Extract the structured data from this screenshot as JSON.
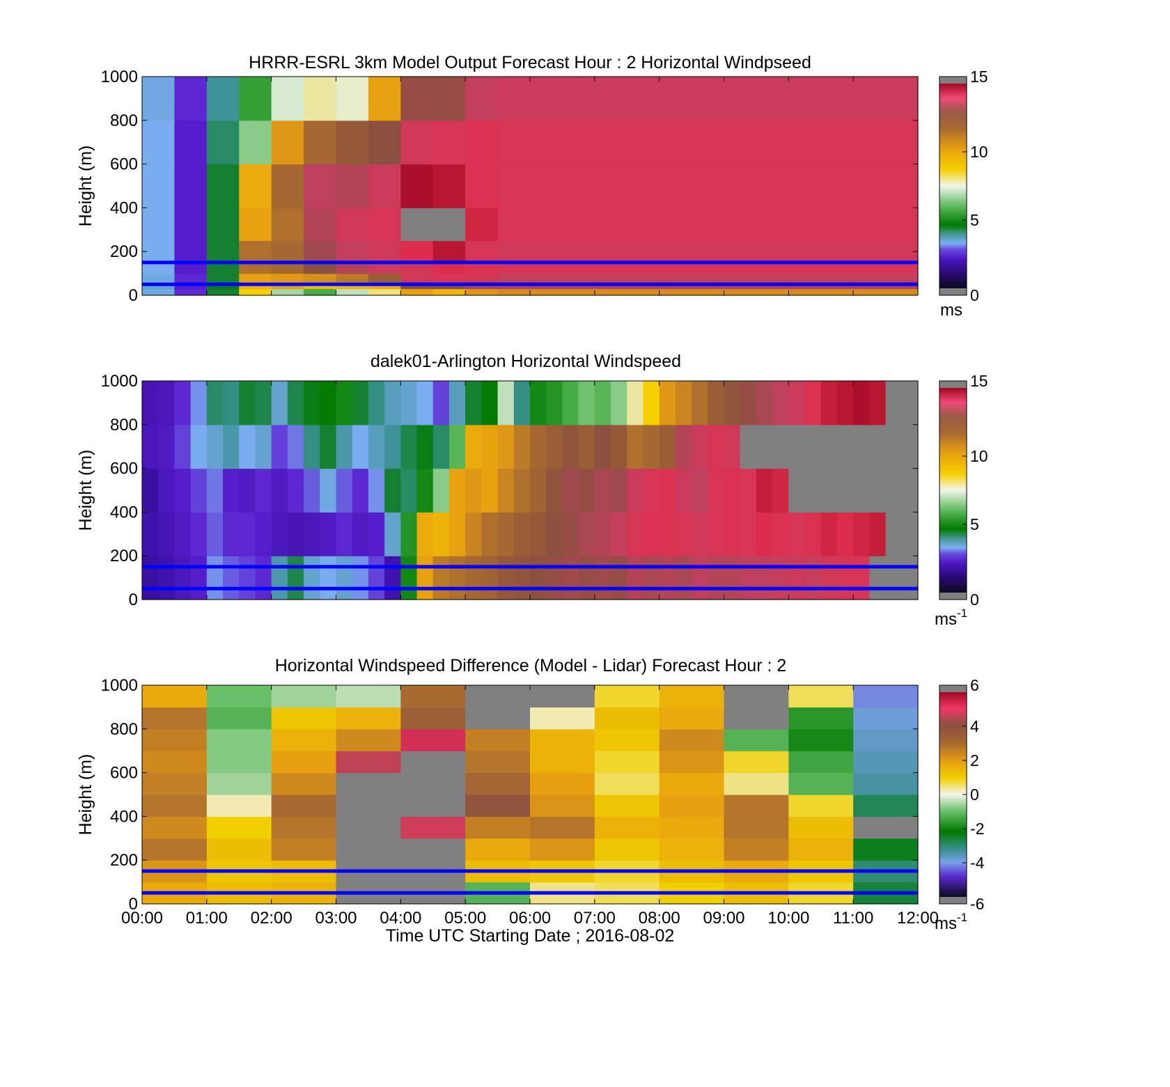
{
  "colors": {
    "background": "#ffffff",
    "reference_lines": "#0000ff",
    "missing_data": "#808080",
    "axis": "#000000",
    "wind_colormap": [
      "#1c0a3a",
      "#3d10a8",
      "#5a20d0",
      "#7aaef0",
      "#3a9090",
      "#007a00",
      "#5ab85a",
      "#e6efe0",
      "#f5d000",
      "#e8a010",
      "#a86a30",
      "#8a5040",
      "#c04060",
      "#e03050",
      "#a00820"
    ],
    "diff_colormap": [
      "#1c0a3a",
      "#5a2ad0",
      "#7aa0e8",
      "#3a9090",
      "#007a00",
      "#6ac06a",
      "#f0f0e0",
      "#f0d000",
      "#e8a010",
      "#a86a30",
      "#8a5040",
      "#e03860",
      "#a00820"
    ]
  },
  "chart_data": [
    {
      "type": "heatmap",
      "title": "HRRR-ESRL 3km Model Output   Forecast Hour : 2 Horizontal Windpseed",
      "xlabel": "",
      "ylabel": "Height (m)",
      "xlim": [
        "00:00",
        "12:00"
      ],
      "xticks": [
        "00:00",
        "01:00",
        "02:00",
        "03:00",
        "04:00",
        "05:00",
        "06:00",
        "07:00",
        "08:00",
        "09:00",
        "10:00",
        "11:00",
        "12:00"
      ],
      "xticklabels_shown": false,
      "ylim": [
        0,
        1000
      ],
      "yticks": [
        "0",
        "200",
        "400",
        "600",
        "800",
        "1000"
      ],
      "colorbar": {
        "min": 0,
        "max": 15,
        "ticks": [
          "0",
          "5",
          "10",
          "15"
        ],
        "unit": "ms"
      },
      "reference_lines_m": [
        150,
        50
      ],
      "time_bins": [
        "00:00",
        "00:30",
        "01:00",
        "01:30",
        "02:00",
        "02:30",
        "03:00",
        "03:30",
        "04:00",
        "04:30",
        "05:00",
        "05:30"
      ],
      "height_levels_m": [
        0,
        30,
        60,
        100,
        150,
        250,
        400,
        600,
        800,
        1000
      ],
      "windspeed_ms": [
        [
          3.4,
          2.2,
          5.0,
          8.6,
          7.0,
          6.2,
          7.2,
          8.0,
          9.6,
          9.2,
          9.8,
          10.0
        ],
        [
          3.6,
          2.0,
          5.2,
          9.2,
          9.6,
          9.0,
          9.2,
          9.4,
          11.8,
          11.8,
          12.4,
          12.6
        ],
        [
          3.4,
          2.2,
          5.0,
          9.6,
          9.8,
          10.0,
          10.4,
          11.2,
          13.4,
          13.6,
          13.4,
          13.0
        ],
        [
          3.2,
          2.0,
          5.0,
          10.6,
          10.8,
          11.8,
          12.6,
          13.2,
          13.4,
          14.0,
          13.8,
          13.6
        ],
        [
          3.2,
          2.0,
          5.0,
          10.6,
          10.8,
          12.2,
          13.0,
          13.4,
          14.0,
          14.6,
          13.6,
          13.4
        ],
        [
          3.2,
          2.0,
          5.0,
          9.6,
          10.6,
          12.6,
          13.4,
          13.6,
          null,
          null,
          14.2,
          13.6
        ],
        [
          3.2,
          2.0,
          5.0,
          9.4,
          10.8,
          12.8,
          12.6,
          13.2,
          14.8,
          14.6,
          13.8,
          13.6
        ],
        [
          3.2,
          2.0,
          4.6,
          6.8,
          9.8,
          10.8,
          11.4,
          11.8,
          13.4,
          13.6,
          13.8,
          13.6
        ],
        [
          3.4,
          2.2,
          4.2,
          6.0,
          7.4,
          7.8,
          7.6,
          9.6,
          12.0,
          12.0,
          13.0,
          13.2
        ]
      ]
    },
    {
      "type": "heatmap",
      "title": "dalek01-Arlington  Horizontal Windspeed",
      "xlabel": "",
      "ylabel": "Height (m)",
      "xlim": [
        "00:00",
        "12:00"
      ],
      "xticks": [
        "00:00",
        "01:00",
        "02:00",
        "03:00",
        "04:00",
        "05:00",
        "06:00",
        "07:00",
        "08:00",
        "09:00",
        "10:00",
        "11:00",
        "12:00"
      ],
      "xticklabels_shown": false,
      "ylim": [
        0,
        1000
      ],
      "yticks": [
        "0",
        "200",
        "400",
        "600",
        "800",
        "1000"
      ],
      "colorbar": {
        "min": 0,
        "max": 15,
        "ticks": [
          "0",
          "5",
          "10",
          "15"
        ],
        "unit": "ms",
        "unit_exponent": "-1"
      },
      "reference_lines_m": [
        150,
        50
      ],
      "time_bins": [
        "00:00",
        "00:15",
        "00:30",
        "00:45",
        "01:00",
        "01:15",
        "01:30",
        "01:45",
        "02:00",
        "02:15",
        "02:30",
        "02:45",
        "03:00",
        "03:15",
        "03:30",
        "03:45",
        "04:00",
        "04:15",
        "04:30",
        "04:45",
        "05:00",
        "05:15",
        "05:30",
        "05:45",
        "06:00",
        "06:15",
        "06:30",
        "06:45",
        "07:00",
        "07:15",
        "07:30",
        "07:45",
        "08:00",
        "08:15",
        "08:30",
        "08:45",
        "09:00",
        "09:15",
        "09:30",
        "09:45",
        "10:00",
        "10:15",
        "10:30",
        "10:45",
        "11:00",
        "11:15",
        "11:30",
        "11:45"
      ],
      "height_bands_m": [
        [
          0,
          200
        ],
        [
          200,
          400
        ],
        [
          400,
          600
        ],
        [
          600,
          800
        ],
        [
          800,
          1000
        ]
      ],
      "windspeed_ms": [
        [
          1.0,
          1.2,
          1.6,
          2.0,
          3.0,
          2.6,
          2.4,
          2.2,
          4.0,
          4.8,
          3.6,
          3.2,
          3.6,
          3.0,
          2.4,
          1.2,
          5.6,
          9.6,
          10.4,
          10.6,
          10.8,
          11.0,
          11.4,
          11.6,
          11.8,
          12.0,
          12.2,
          12.0,
          12.2,
          12.0,
          12.6,
          12.4,
          12.6,
          12.4,
          12.8,
          12.6,
          12.6,
          12.8,
          12.8,
          13.0,
          13.2,
          13.0,
          13.4,
          13.6,
          13.6,
          null,
          null,
          null
        ],
        [
          1.2,
          1.4,
          1.8,
          2.2,
          2.6,
          2.2,
          2.2,
          2.0,
          1.6,
          1.4,
          1.6,
          1.8,
          2.2,
          1.8,
          2.0,
          3.6,
          5.8,
          9.4,
          9.2,
          9.6,
          10.2,
          10.6,
          10.8,
          11.2,
          11.4,
          11.8,
          12.0,
          12.4,
          12.6,
          13.0,
          13.6,
          13.8,
          13.8,
          13.6,
          13.4,
          13.6,
          13.8,
          13.6,
          14.0,
          13.8,
          13.6,
          13.8,
          14.2,
          14.0,
          14.2,
          14.4,
          null,
          null
        ],
        [
          1.0,
          1.6,
          2.0,
          2.4,
          2.8,
          2.0,
          1.8,
          2.2,
          1.8,
          2.2,
          2.6,
          3.4,
          2.6,
          2.2,
          3.0,
          5.0,
          4.6,
          5.6,
          6.8,
          9.6,
          9.8,
          9.6,
          10.2,
          10.6,
          11.0,
          11.6,
          12.2,
          12.0,
          12.4,
          12.2,
          13.2,
          13.6,
          13.8,
          13.2,
          12.8,
          13.6,
          13.8,
          13.6,
          14.4,
          14.2,
          null,
          null,
          null,
          null,
          null,
          null,
          null,
          null
        ],
        [
          1.6,
          1.8,
          2.4,
          3.2,
          3.6,
          4.0,
          3.2,
          3.6,
          2.4,
          2.8,
          4.4,
          5.0,
          4.0,
          3.2,
          3.8,
          4.2,
          4.8,
          5.2,
          4.6,
          6.4,
          9.4,
          9.6,
          9.8,
          10.4,
          10.8,
          11.2,
          11.6,
          11.2,
          11.8,
          11.4,
          10.6,
          10.8,
          11.2,
          12.6,
          13.2,
          13.6,
          13.4,
          null,
          null,
          null,
          null,
          null,
          null,
          null,
          null,
          null,
          null,
          null
        ],
        [
          1.4,
          1.6,
          2.2,
          3.0,
          4.6,
          4.4,
          5.0,
          4.8,
          3.6,
          4.8,
          5.2,
          5.4,
          5.6,
          5.0,
          4.4,
          3.8,
          3.6,
          3.2,
          2.4,
          3.8,
          5.0,
          5.4,
          7.2,
          4.4,
          5.6,
          5.8,
          6.2,
          6.6,
          6.4,
          6.8,
          7.8,
          8.6,
          9.8,
          10.2,
          10.6,
          11.2,
          11.6,
          12.0,
          12.4,
          12.8,
          13.2,
          13.8,
          14.4,
          14.6,
          14.8,
          14.6,
          null,
          null
        ]
      ]
    },
    {
      "type": "heatmap",
      "title": "Horizontal Windspeed Difference (Model - Lidar) Forecast Hour : 2",
      "xlabel": "Time UTC  Starting Date ; 2016-08-02",
      "ylabel": "Height (m)",
      "xlim": [
        "00:00",
        "12:00"
      ],
      "xticks": [
        "00:00",
        "01:00",
        "02:00",
        "03:00",
        "04:00",
        "05:00",
        "06:00",
        "07:00",
        "08:00",
        "09:00",
        "10:00",
        "11:00",
        "12:00"
      ],
      "xticklabels_shown": true,
      "ylim": [
        0,
        1000
      ],
      "yticks": [
        "0",
        "200",
        "400",
        "600",
        "800",
        "1000"
      ],
      "colorbar": {
        "min": -6,
        "max": 6,
        "ticks": [
          "-6",
          "-4",
          "-2",
          "0",
          "2",
          "4",
          "6"
        ],
        "unit": "ms",
        "unit_exponent": "-1"
      },
      "reference_lines_m": [
        150,
        50
      ],
      "time_bins": [
        "00:00",
        "01:00",
        "02:00",
        "03:00",
        "04:00",
        "05:00",
        "06:00",
        "07:00",
        "08:00",
        "09:00",
        "10:00",
        "11:00"
      ],
      "height_bands_m": [
        [
          0,
          100
        ],
        [
          100,
          200
        ],
        [
          200,
          300
        ],
        [
          300,
          400
        ],
        [
          400,
          500
        ],
        [
          500,
          600
        ],
        [
          600,
          700
        ],
        [
          700,
          800
        ],
        [
          800,
          900
        ],
        [
          900,
          1000
        ]
      ],
      "difference_ms": [
        [
          1.8,
          1.4,
          1.6,
          null,
          null,
          -1.2,
          0.4,
          0.6,
          1.0,
          1.4,
          0.8,
          -2.4
        ],
        [
          2.2,
          1.2,
          1.4,
          null,
          null,
          1.4,
          1.2,
          0.8,
          1.4,
          1.8,
          1.2,
          -2.8
        ],
        [
          2.8,
          1.4,
          2.6,
          null,
          null,
          1.8,
          2.2,
          1.2,
          1.6,
          2.6,
          1.6,
          -2.2
        ],
        [
          2.4,
          1.0,
          2.8,
          null,
          4.8,
          2.6,
          2.8,
          1.6,
          1.8,
          2.8,
          1.4,
          null
        ],
        [
          2.8,
          0.2,
          3.0,
          null,
          null,
          3.8,
          2.2,
          1.2,
          2.0,
          2.8,
          0.8,
          -2.6
        ],
        [
          2.6,
          -0.6,
          2.4,
          null,
          null,
          3.2,
          2.0,
          0.6,
          1.8,
          0.4,
          -1.2,
          -3.2
        ],
        [
          2.4,
          -0.8,
          2.0,
          4.6,
          null,
          2.8,
          1.6,
          0.8,
          2.2,
          0.8,
          -1.4,
          -3.4
        ],
        [
          2.6,
          -0.8,
          1.6,
          2.4,
          5.2,
          2.6,
          1.6,
          1.2,
          2.4,
          -1.2,
          -1.8,
          -3.6
        ],
        [
          2.8,
          -1.2,
          1.2,
          1.6,
          3.4,
          null,
          0.2,
          1.4,
          1.8,
          null,
          -1.6,
          -3.8
        ],
        [
          1.8,
          -1.0,
          -0.6,
          -0.4,
          3.0,
          null,
          null,
          0.8,
          1.6,
          null,
          0.6,
          -4.2
        ]
      ]
    }
  ]
}
